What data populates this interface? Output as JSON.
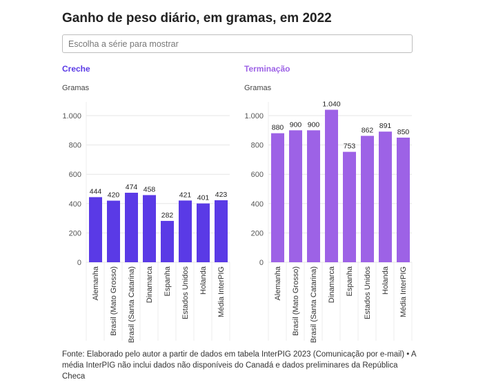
{
  "title": "Ganho de peso diário, em gramas, em 2022",
  "search": {
    "placeholder": "Escolha a série para mostrar"
  },
  "chart_data": [
    {
      "type": "bar",
      "title": "Creche",
      "ylabel": "Gramas",
      "color": "#5a3ae6",
      "categories": [
        "Alemanha",
        "Brasil (Mato Grosso)",
        "Brasil (Santa Catarina)",
        "Dinamarca",
        "Espanha",
        "Estados Unidos",
        "Holanda",
        "Média InterPIG"
      ],
      "values": [
        444,
        420,
        474,
        458,
        282,
        421,
        401,
        423
      ],
      "value_labels": [
        "444",
        "420",
        "474",
        "458",
        "282",
        "421",
        "401",
        "423"
      ],
      "ylim": [
        0,
        1000
      ],
      "yticks": [
        0,
        200,
        400,
        600,
        800,
        1000
      ],
      "ytick_labels": [
        "0",
        "200",
        "400",
        "600",
        "800",
        "1.000"
      ],
      "grid": true
    },
    {
      "type": "bar",
      "title": "Terminação",
      "ylabel": "Gramas",
      "color": "#9d62e6",
      "categories": [
        "Alemanha",
        "Brasil (Mato Grosso)",
        "Brasil (Santa Catarina)",
        "Dinamarca",
        "Espanha",
        "Estados Unidos",
        "Holanda",
        "Média InterPIG"
      ],
      "values": [
        880,
        900,
        900,
        1040,
        753,
        862,
        891,
        850
      ],
      "value_labels": [
        "880",
        "900",
        "900",
        "1.040",
        "753",
        "862",
        "891",
        "850"
      ],
      "ylim": [
        0,
        1000
      ],
      "yticks": [
        0,
        200,
        400,
        600,
        800,
        1000
      ],
      "ytick_labels": [
        "0",
        "200",
        "400",
        "600",
        "800",
        "1.000"
      ],
      "grid": true
    }
  ],
  "source": "Fonte: Elaborado pelo autor a partir de dados em tabela InterPIG 2023 (Comunicação por e-mail) • A média InterPIG não inclui dados não disponíveis do Canadá e dados preliminares da República Checa"
}
